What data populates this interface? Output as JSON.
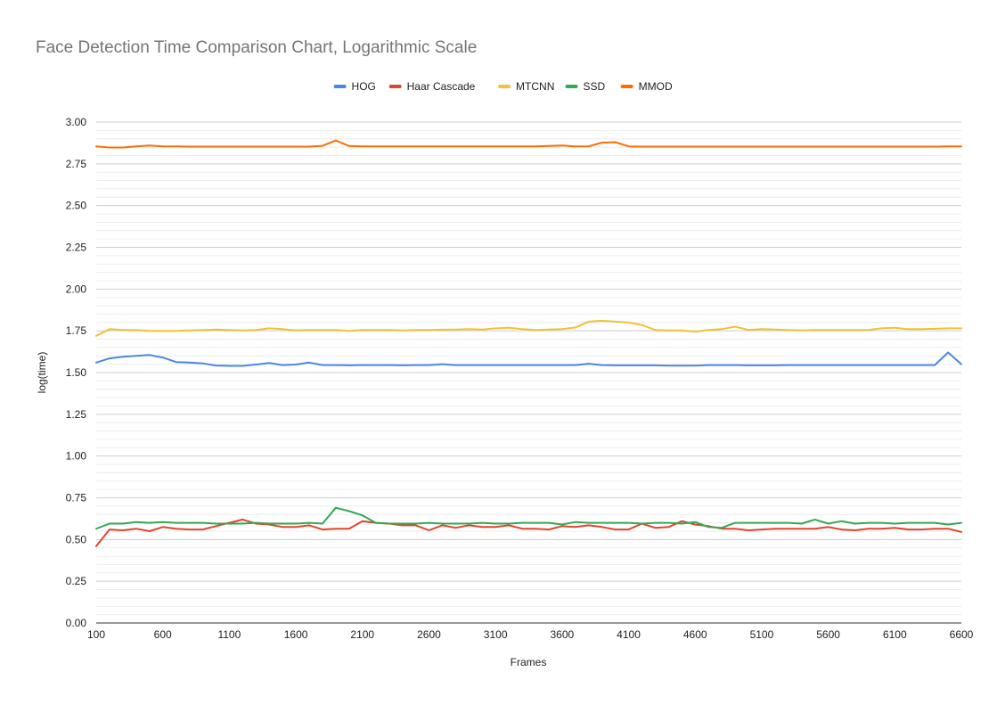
{
  "chart_data": {
    "type": "line",
    "title": "Face Detection Time Comparison Chart, Logarithmic Scale",
    "xlabel": "Frames",
    "ylabel": "log(time)",
    "xlim": [
      100,
      6600
    ],
    "ylim": [
      0,
      3
    ],
    "x_ticks": [
      100,
      600,
      1100,
      1600,
      2100,
      2600,
      3100,
      3600,
      4100,
      4600,
      5100,
      5600,
      6100,
      6600
    ],
    "y_ticks": [
      "0.00",
      "0.25",
      "0.50",
      "0.75",
      "1.00",
      "1.25",
      "1.50",
      "1.75",
      "2.00",
      "2.25",
      "2.50",
      "2.75",
      "3.00"
    ],
    "grid": true,
    "legend_position": "top",
    "x": [
      100,
      200,
      300,
      400,
      500,
      600,
      700,
      800,
      900,
      1000,
      1100,
      1200,
      1300,
      1400,
      1500,
      1600,
      1700,
      1800,
      1900,
      2000,
      2100,
      2200,
      2300,
      2400,
      2500,
      2600,
      2700,
      2800,
      2900,
      3000,
      3100,
      3200,
      3300,
      3400,
      3500,
      3600,
      3700,
      3800,
      3900,
      4000,
      4100,
      4200,
      4300,
      4400,
      4500,
      4600,
      4700,
      4800,
      4900,
      5000,
      5100,
      5200,
      5300,
      5400,
      5500,
      5600,
      5700,
      5800,
      5900,
      6000,
      6100,
      6200,
      6300,
      6400,
      6500,
      6600
    ],
    "series": [
      {
        "name": "HOG",
        "color": "#4a86e8",
        "values": [
          1.56,
          1.585,
          1.595,
          1.6,
          1.605,
          1.59,
          1.563,
          1.56,
          1.555,
          1.542,
          1.54,
          1.54,
          1.548,
          1.557,
          1.545,
          1.548,
          1.56,
          1.545,
          1.545,
          1.543,
          1.545,
          1.545,
          1.545,
          1.543,
          1.545,
          1.545,
          1.55,
          1.545,
          1.545,
          1.545,
          1.545,
          1.545,
          1.545,
          1.545,
          1.545,
          1.545,
          1.545,
          1.553,
          1.545,
          1.543,
          1.543,
          1.543,
          1.543,
          1.541,
          1.541,
          1.541,
          1.545,
          1.545,
          1.545,
          1.543,
          1.543,
          1.543,
          1.545,
          1.545,
          1.545,
          1.545,
          1.545,
          1.545,
          1.545,
          1.545,
          1.545,
          1.545,
          1.545,
          1.545,
          1.62,
          1.55
        ]
      },
      {
        "name": "Haar Cascade",
        "color": "#e0452f",
        "values": [
          0.46,
          0.56,
          0.555,
          0.565,
          0.55,
          0.575,
          0.565,
          0.56,
          0.56,
          0.58,
          0.6,
          0.62,
          0.595,
          0.59,
          0.575,
          0.575,
          0.585,
          0.56,
          0.565,
          0.565,
          0.61,
          0.6,
          0.595,
          0.585,
          0.585,
          0.555,
          0.585,
          0.57,
          0.585,
          0.575,
          0.575,
          0.585,
          0.565,
          0.565,
          0.56,
          0.58,
          0.575,
          0.585,
          0.575,
          0.56,
          0.56,
          0.595,
          0.57,
          0.575,
          0.61,
          0.59,
          0.58,
          0.565,
          0.565,
          0.555,
          0.56,
          0.565,
          0.565,
          0.565,
          0.565,
          0.575,
          0.56,
          0.555,
          0.565,
          0.565,
          0.57,
          0.56,
          0.56,
          0.565,
          0.565,
          0.545
        ]
      },
      {
        "name": "MTCNN",
        "color": "#f1c232",
        "values": [
          1.72,
          1.76,
          1.755,
          1.755,
          1.75,
          1.75,
          1.75,
          1.752,
          1.755,
          1.758,
          1.755,
          1.752,
          1.755,
          1.765,
          1.76,
          1.752,
          1.755,
          1.755,
          1.755,
          1.75,
          1.755,
          1.755,
          1.755,
          1.752,
          1.755,
          1.755,
          1.757,
          1.758,
          1.76,
          1.758,
          1.765,
          1.768,
          1.76,
          1.755,
          1.758,
          1.76,
          1.77,
          1.805,
          1.81,
          1.805,
          1.8,
          1.785,
          1.755,
          1.752,
          1.752,
          1.745,
          1.755,
          1.76,
          1.775,
          1.755,
          1.76,
          1.758,
          1.755,
          1.752,
          1.755,
          1.755,
          1.755,
          1.755,
          1.755,
          1.765,
          1.768,
          1.76,
          1.76,
          1.762,
          1.765,
          1.765
        ]
      },
      {
        "name": "SSD",
        "color": "#34a853",
        "values": [
          0.565,
          0.595,
          0.595,
          0.605,
          0.6,
          0.605,
          0.6,
          0.6,
          0.6,
          0.595,
          0.595,
          0.595,
          0.6,
          0.595,
          0.595,
          0.595,
          0.6,
          0.595,
          0.69,
          0.67,
          0.645,
          0.6,
          0.595,
          0.595,
          0.595,
          0.6,
          0.595,
          0.595,
          0.595,
          0.6,
          0.595,
          0.595,
          0.6,
          0.6,
          0.6,
          0.59,
          0.605,
          0.6,
          0.6,
          0.6,
          0.6,
          0.595,
          0.6,
          0.6,
          0.595,
          0.605,
          0.575,
          0.57,
          0.6,
          0.6,
          0.6,
          0.6,
          0.6,
          0.595,
          0.62,
          0.595,
          0.61,
          0.595,
          0.6,
          0.6,
          0.595,
          0.6,
          0.6,
          0.6,
          0.59,
          0.6
        ]
      },
      {
        "name": "MMOD",
        "color": "#ff6d01",
        "values": [
          2.855,
          2.848,
          2.848,
          2.855,
          2.86,
          2.855,
          2.855,
          2.853,
          2.853,
          2.853,
          2.853,
          2.853,
          2.853,
          2.853,
          2.853,
          2.853,
          2.853,
          2.858,
          2.89,
          2.857,
          2.855,
          2.855,
          2.855,
          2.855,
          2.855,
          2.855,
          2.855,
          2.855,
          2.855,
          2.855,
          2.855,
          2.855,
          2.855,
          2.855,
          2.857,
          2.86,
          2.855,
          2.855,
          2.877,
          2.88,
          2.855,
          2.853,
          2.853,
          2.853,
          2.853,
          2.853,
          2.853,
          2.853,
          2.853,
          2.853,
          2.853,
          2.853,
          2.853,
          2.853,
          2.853,
          2.853,
          2.853,
          2.853,
          2.853,
          2.853,
          2.853,
          2.853,
          2.853,
          2.853,
          2.855,
          2.855
        ]
      }
    ]
  }
}
